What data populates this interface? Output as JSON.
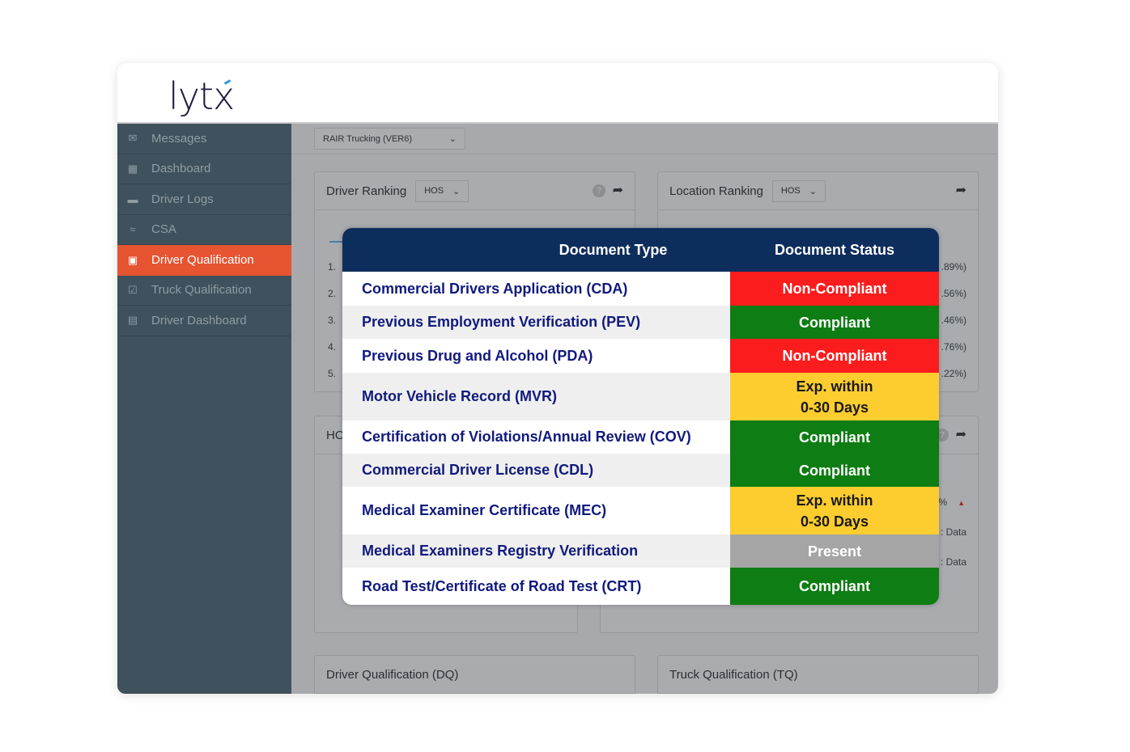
{
  "logo": "lytx",
  "sidebar": {
    "items": [
      {
        "label": "Messages",
        "icon": "envelope-icon",
        "glyph": "✉"
      },
      {
        "label": "Dashboard",
        "icon": "calendar-icon",
        "glyph": "▦"
      },
      {
        "label": "Driver Logs",
        "icon": "folder-user-icon",
        "glyph": "▬"
      },
      {
        "label": "CSA",
        "icon": "signal-icon",
        "glyph": "≈"
      },
      {
        "label": "Driver Qualification",
        "icon": "badge-icon",
        "glyph": "▣",
        "active": true
      },
      {
        "label": "Truck Qualification",
        "icon": "clipboard-check-icon",
        "glyph": "☑"
      },
      {
        "label": "Driver Dashboard",
        "icon": "document-icon",
        "glyph": "▤"
      }
    ]
  },
  "topbar": {
    "company_select": "RAIR Trucking (VER6)"
  },
  "panels": {
    "driver_ranking": {
      "title": "Driver Ranking",
      "filter": "HOS",
      "ranks": [
        "1.",
        "2.",
        "3.",
        "4.",
        "5."
      ]
    },
    "location_ranking": {
      "title": "Location Ranking",
      "filter": "HOS",
      "values": [
        ".89%)",
        ".56%)",
        ".46%)",
        ".76%)",
        ".22%)"
      ]
    },
    "hos_panel": {
      "title": "HO"
    },
    "right_panel": {
      "labels": [
        "%",
        ": Data",
        ": Data"
      ]
    },
    "dq": {
      "title": "Driver Qualification (DQ)"
    },
    "tq": {
      "title": "Truck Qualification (TQ)"
    }
  },
  "modal": {
    "headers": [
      "Document Type",
      "Document Status"
    ],
    "colors": {
      "Non-Compliant": "#fb1d1d",
      "Compliant": "#0e7d13",
      "Exp": "#fdcd2f",
      "Present": "#a5a5a5"
    },
    "rows": [
      {
        "type": "Commercial Drivers Application (CDA)",
        "status": "Non-Compliant",
        "kind": "red"
      },
      {
        "type": "Previous Employment Verification (PEV)",
        "status": "Compliant",
        "kind": "green"
      },
      {
        "type": "Previous Drug and Alcohol (PDA)",
        "status": "Non-Compliant",
        "kind": "red"
      },
      {
        "type": "Motor Vehicle Record (MVR)",
        "status": "Exp. within 0-30 Days",
        "kind": "yellow"
      },
      {
        "type": "Certification of Violations/Annual Review (COV)",
        "status": "Compliant",
        "kind": "green"
      },
      {
        "type": "Commercial Driver License (CDL)",
        "status": "Compliant",
        "kind": "green"
      },
      {
        "type": "Medical Examiner Certificate (MEC)",
        "status": "Exp. within 0-30 Days",
        "kind": "yellow"
      },
      {
        "type": "Medical Examiners Registry Verification",
        "status": "Present",
        "kind": "gray"
      },
      {
        "type": "Road Test/Certificate of Road Test (CRT)",
        "status": "Compliant",
        "kind": "green"
      }
    ]
  }
}
